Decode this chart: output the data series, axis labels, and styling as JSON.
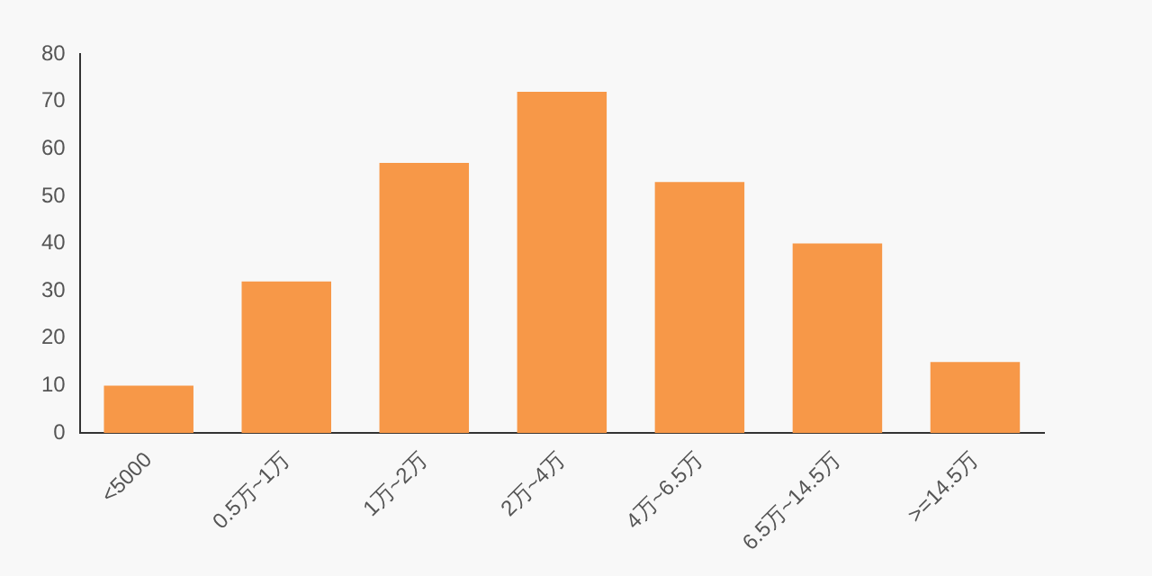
{
  "chart_data": {
    "type": "bar",
    "categories": [
      "<5000",
      "0.5万~1万",
      "1万~2万",
      "2万~4万",
      "4万~6.5万",
      "6.5万~14.5万",
      ">=14.5万"
    ],
    "values": [
      10,
      32,
      57,
      72,
      53,
      40,
      15
    ],
    "color": "#f79848",
    "ylim": [
      0,
      80
    ],
    "yticks": [
      0,
      10,
      20,
      30,
      40,
      50,
      60,
      70,
      80
    ],
    "grid": false,
    "legend": false
  }
}
